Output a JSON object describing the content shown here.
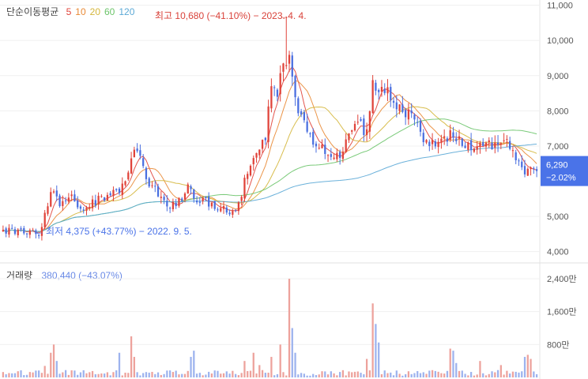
{
  "chart_data": [
    {
      "type": "candlestick",
      "legend_label": "단순이동평균",
      "ma_periods": [
        {
          "label": "5",
          "color": "#e0433a"
        },
        {
          "label": "10",
          "color": "#e98a35"
        },
        {
          "label": "20",
          "color": "#d4b63a"
        },
        {
          "label": "60",
          "color": "#6cc46a"
        },
        {
          "label": "120",
          "color": "#5ba9d6"
        }
      ],
      "y_ticks": [
        "11,000",
        "10,000",
        "9,000",
        "8,000",
        "7,000",
        "5,000",
        "4,000"
      ],
      "y_tick_values": [
        11000,
        10000,
        9000,
        8000,
        7000,
        5000,
        4000
      ],
      "ylim": [
        3700,
        11150
      ],
      "high_annotation": "최고 10,680 (−41.10%) − 2023. 4. 4.",
      "low_annotation": "최저 4,375 (+43.77%) − 2022. 9. 5.",
      "current_price": "6,290",
      "current_change": "−2.02%",
      "current_value": 6290,
      "up_color": "#e0433a",
      "down_color": "#4a6fe0",
      "badge_color": "#4a73e8",
      "trend_keypoints": [
        [
          0,
          4600
        ],
        [
          6,
          4620
        ],
        [
          11,
          4480
        ],
        [
          13,
          4600
        ],
        [
          16,
          5750
        ],
        [
          19,
          5420
        ],
        [
          23,
          5560
        ],
        [
          27,
          5200
        ],
        [
          32,
          5500
        ],
        [
          36,
          5600
        ],
        [
          39,
          5800
        ],
        [
          41,
          6100
        ],
        [
          44,
          6900
        ],
        [
          46,
          6700
        ],
        [
          48,
          6100
        ],
        [
          52,
          5700
        ],
        [
          56,
          5250
        ],
        [
          60,
          5450
        ],
        [
          62,
          5800
        ],
        [
          64,
          5550
        ],
        [
          67,
          5500
        ],
        [
          71,
          5250
        ],
        [
          76,
          5150
        ],
        [
          79,
          5300
        ],
        [
          82,
          6300
        ],
        [
          84,
          6600
        ],
        [
          86,
          6900
        ],
        [
          88,
          7200
        ],
        [
          90,
          8800
        ],
        [
          92,
          8600
        ],
        [
          94,
          9500
        ],
        [
          96,
          9400
        ],
        [
          98,
          8300
        ],
        [
          101,
          7600
        ],
        [
          104,
          7100
        ],
        [
          107,
          6900
        ],
        [
          110,
          6850
        ],
        [
          113,
          6800
        ],
        [
          116,
          7200
        ],
        [
          119,
          7600
        ],
        [
          122,
          7400
        ],
        [
          124,
          8900
        ],
        [
          126,
          8600
        ],
        [
          130,
          8500
        ],
        [
          134,
          8000
        ],
        [
          138,
          7900
        ],
        [
          141,
          7200
        ],
        [
          145,
          7100
        ],
        [
          150,
          7300
        ],
        [
          154,
          7100
        ],
        [
          158,
          7000
        ],
        [
          162,
          7100
        ],
        [
          166,
          7000
        ],
        [
          168,
          7300
        ],
        [
          172,
          6600
        ],
        [
          175,
          6300
        ],
        [
          177,
          6500
        ],
        [
          179,
          6290
        ]
      ],
      "volume_axis": {
        "label": "거래량",
        "latest": "380,440 (−43.07%)",
        "ticks": [
          "2,400만",
          "1,600만",
          "800만"
        ],
        "tick_values": [
          24000000,
          16000000,
          8000000
        ],
        "ylim": [
          0,
          26500000
        ],
        "spikes": [
          [
            14,
            2800000
          ],
          [
            16,
            6000000
          ],
          [
            17,
            8000000
          ],
          [
            18,
            4000000
          ],
          [
            43,
            10000000
          ],
          [
            44,
            5000000
          ],
          [
            39,
            6000000
          ],
          [
            63,
            5000000
          ],
          [
            64,
            6500000
          ],
          [
            81,
            4000000
          ],
          [
            84,
            6000000
          ],
          [
            86,
            3000000
          ],
          [
            90,
            5000000
          ],
          [
            93,
            8000000
          ],
          [
            96,
            24000000
          ],
          [
            97,
            12000000
          ],
          [
            98,
            6000000
          ],
          [
            122,
            4500000
          ],
          [
            124,
            18000000
          ],
          [
            125,
            13000000
          ],
          [
            126,
            8500000
          ],
          [
            150,
            7000000
          ],
          [
            151,
            6500000
          ],
          [
            152,
            3500000
          ],
          [
            160,
            4000000
          ],
          [
            167,
            3000000
          ],
          [
            175,
            5000000
          ],
          [
            176,
            5500000
          ],
          [
            177,
            4500000
          ]
        ]
      }
    }
  ]
}
